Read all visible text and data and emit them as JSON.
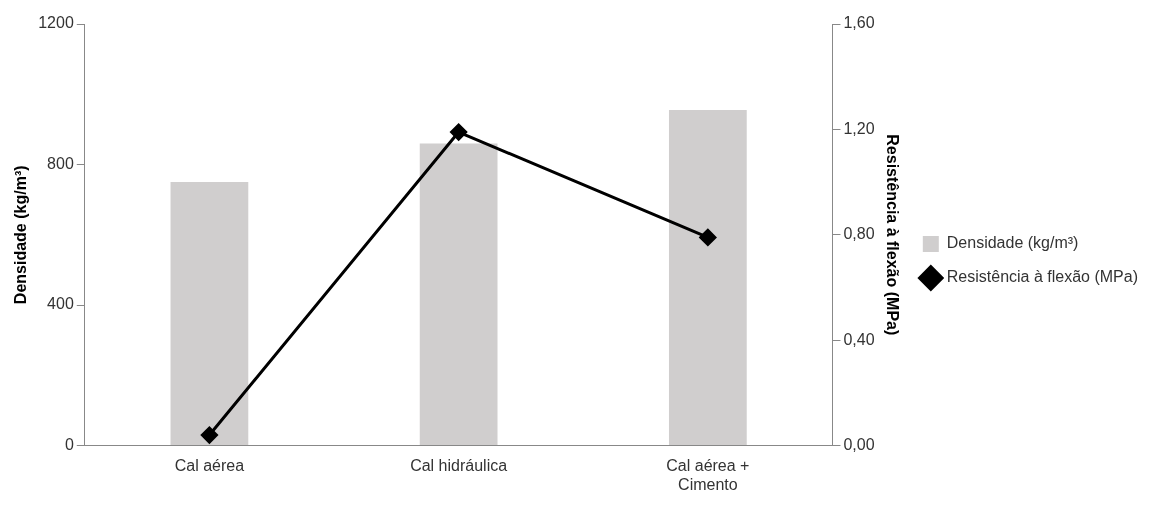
{
  "chart_data": {
    "type": "bar",
    "categories": [
      "Cal aérea",
      "Cal hidráulica",
      "Cal aérea + Cimento"
    ],
    "series": [
      {
        "name": "Densidade (kg/m³)",
        "color": "#d0cece",
        "values": [
          750,
          860,
          955
        ]
      },
      {
        "name": "Resistência à flexão (MPa)",
        "type": "line",
        "axis": "y2",
        "color": "#000000",
        "values": [
          0.04,
          1.19,
          0.79
        ],
        "marker": "diamond",
        "line_style": "solid"
      }
    ],
    "ylabel": "Densidade (kg/m³)",
    "y2label": "Resistência à flexão (MPa)",
    "ylim": [
      0,
      1200
    ],
    "yticks": [
      0,
      400,
      800,
      1200
    ],
    "y2lim": [
      0,
      1.6
    ],
    "y2ticks": [
      {
        "value": 0,
        "label": "0,00"
      },
      {
        "value": 0.4,
        "label": "0,40"
      },
      {
        "value": 0.8,
        "label": "0,80"
      },
      {
        "value": 1.2,
        "label": "1,20"
      },
      {
        "value": 1.6,
        "label": "1,60"
      }
    ],
    "grid": false,
    "legend": "right"
  }
}
